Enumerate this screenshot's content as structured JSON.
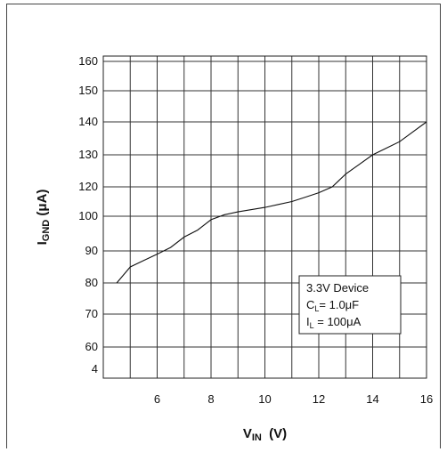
{
  "chart_data": {
    "type": "line",
    "x": [
      4.5,
      5.0,
      5.5,
      6.0,
      6.5,
      7.0,
      7.5,
      8.0,
      8.5,
      9.0,
      9.5,
      10.0,
      10.5,
      11.0,
      11.5,
      12.0,
      12.5,
      13.0,
      13.5,
      14.0,
      14.5,
      15.0,
      15.5,
      16.0
    ],
    "series": [
      {
        "values": [
          80,
          85,
          87,
          89,
          91,
          94,
          96,
          99,
          101,
          103,
          104.5,
          106,
          108,
          110,
          113,
          116,
          120,
          124,
          127,
          130,
          132,
          134,
          137,
          140
        ]
      }
    ],
    "xticks": [
      "6",
      "8",
      "10",
      "12",
      "14",
      "16"
    ],
    "yticks": [
      "4",
      "60",
      "70",
      "80",
      "90",
      "100",
      "120",
      "130",
      "140",
      "150",
      "160"
    ],
    "xlim": [
      4,
      16
    ],
    "grid": true,
    "legend_position": "bottom-right",
    "annotation": {
      "line1": "3.3V Device",
      "line2_main": "C",
      "line2_sub": "L",
      "line2_rest": "= 1.0μF",
      "line3_main": "I",
      "line3_sub": "L",
      "line3_rest": " = 100μA"
    },
    "xlabel": {
      "main": "V",
      "sub": "IN",
      "rest": "  (V)"
    },
    "ylabel": {
      "main": "I",
      "sub": "GND",
      "rest": " (μA)"
    }
  }
}
